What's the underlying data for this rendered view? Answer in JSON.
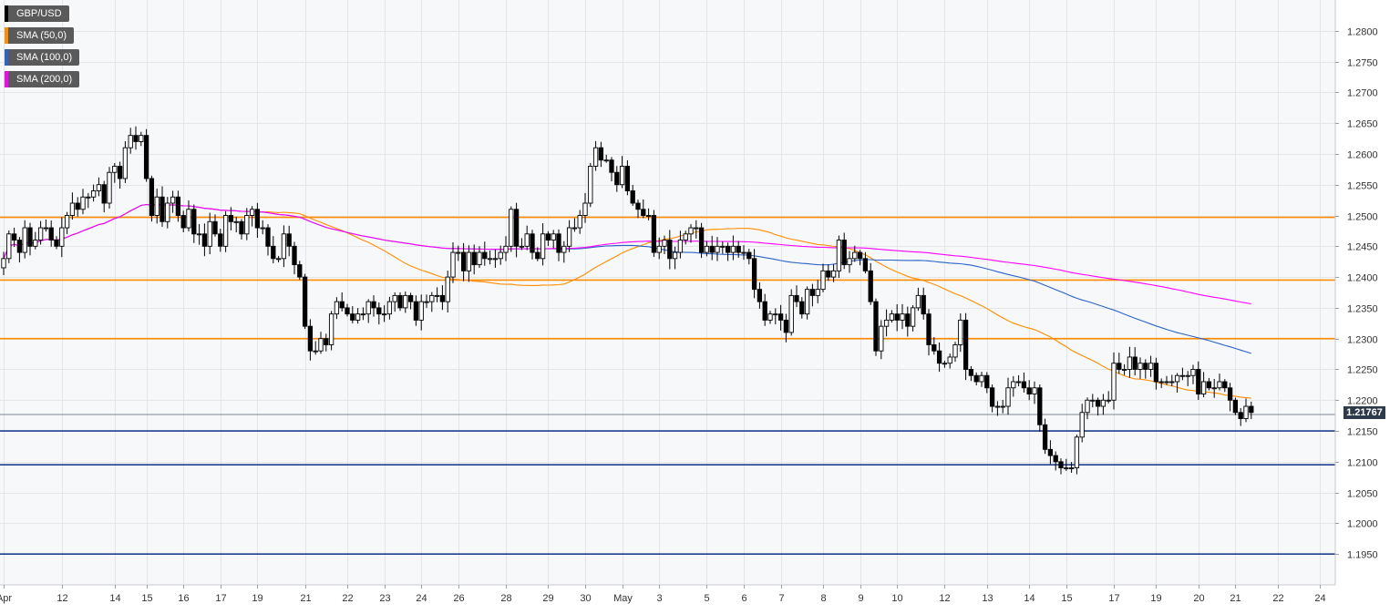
{
  "chart_data": {
    "type": "candlestick",
    "symbol": "GBP/USD",
    "last_price": "1.21767",
    "y_axis": {
      "min": 1.19,
      "max": 1.285,
      "ticks": [
        "1.2800",
        "1.2750",
        "1.2700",
        "1.2650",
        "1.2600",
        "1.2550",
        "1.2500",
        "1.2450",
        "1.2400",
        "1.2350",
        "1.2300",
        "1.2250",
        "1.2200",
        "1.2150",
        "1.2100",
        "1.2050",
        "1.2000",
        "1.1950"
      ]
    },
    "x_axis": {
      "ticks": [
        {
          "label": "Apr",
          "i": 0
        },
        {
          "label": "12",
          "i": 11
        },
        {
          "label": "14",
          "i": 21
        },
        {
          "label": "15",
          "i": 27
        },
        {
          "label": "16",
          "i": 34
        },
        {
          "label": "17",
          "i": 41
        },
        {
          "label": "19",
          "i": 48
        },
        {
          "label": "21",
          "i": 57
        },
        {
          "label": "22",
          "i": 65
        },
        {
          "label": "23",
          "i": 72
        },
        {
          "label": "24",
          "i": 79
        },
        {
          "label": "26",
          "i": 86
        },
        {
          "label": "28",
          "i": 95
        },
        {
          "label": "29",
          "i": 103
        },
        {
          "label": "30",
          "i": 110
        },
        {
          "label": "May",
          "i": 117
        },
        {
          "label": "3",
          "i": 124
        },
        {
          "label": "5",
          "i": 133
        },
        {
          "label": "6",
          "i": 140
        },
        {
          "label": "7",
          "i": 147
        },
        {
          "label": "8",
          "i": 155
        },
        {
          "label": "9",
          "i": 162
        },
        {
          "label": "10",
          "i": 169
        },
        {
          "label": "12",
          "i": 178
        },
        {
          "label": "13",
          "i": 186
        },
        {
          "label": "14",
          "i": 194
        },
        {
          "label": "15",
          "i": 201
        },
        {
          "label": "17",
          "i": 210
        },
        {
          "label": "19",
          "i": 218
        },
        {
          "label": "20",
          "i": 226
        },
        {
          "label": "21",
          "i": 233
        },
        {
          "label": "22",
          "i": 241
        },
        {
          "label": "24",
          "i": 249
        }
      ]
    },
    "horizontal_levels": [
      {
        "value": 1.2497,
        "color": "#ff8c00"
      },
      {
        "value": 1.2395,
        "color": "#ff8c00"
      },
      {
        "value": 1.23,
        "color": "#ff8c00"
      },
      {
        "value": 1.215,
        "color": "#1f3f8f"
      },
      {
        "value": 1.2095,
        "color": "#1f3f8f"
      },
      {
        "value": 1.195,
        "color": "#1f3f8f"
      }
    ],
    "series": [
      {
        "name": "GBP/USD",
        "color": "#000000"
      },
      {
        "name": "SMA (50,0)",
        "color": "#ff8c00"
      },
      {
        "name": "SMA (100,0)",
        "color": "#2a63c9"
      },
      {
        "name": "SMA (200,0)",
        "color": "#ff00ff"
      }
    ],
    "closes": [
      1.243,
      1.247,
      1.246,
      1.244,
      1.248,
      1.245,
      1.246,
      1.248,
      1.248,
      1.246,
      1.245,
      1.248,
      1.25,
      1.252,
      1.251,
      1.253,
      1.253,
      1.254,
      1.255,
      1.252,
      1.257,
      1.258,
      1.256,
      1.261,
      1.263,
      1.262,
      1.263,
      1.256,
      1.25,
      1.253,
      1.249,
      1.252,
      1.253,
      1.25,
      1.248,
      1.251,
      1.247,
      1.247,
      1.245,
      1.249,
      1.247,
      1.245,
      1.25,
      1.249,
      1.249,
      1.247,
      1.25,
      1.251,
      1.248,
      1.248,
      1.245,
      1.243,
      1.243,
      1.247,
      1.245,
      1.242,
      1.24,
      1.232,
      1.228,
      1.228,
      1.23,
      1.229,
      1.234,
      1.236,
      1.235,
      1.234,
      1.233,
      1.234,
      1.234,
      1.236,
      1.235,
      1.234,
      1.234,
      1.236,
      1.237,
      1.235,
      1.237,
      1.236,
      1.233,
      1.236,
      1.236,
      1.237,
      1.237,
      1.236,
      1.24,
      1.244,
      1.244,
      1.241,
      1.244,
      1.242,
      1.244,
      1.243,
      1.243,
      1.243,
      1.244,
      1.245,
      1.251,
      1.245,
      1.245,
      1.247,
      1.244,
      1.243,
      1.247,
      1.246,
      1.247,
      1.244,
      1.245,
      1.248,
      1.248,
      1.25,
      1.252,
      1.258,
      1.261,
      1.259,
      1.259,
      1.257,
      1.255,
      1.258,
      1.254,
      1.252,
      1.251,
      1.25,
      1.25,
      1.244,
      1.245,
      1.246,
      1.243,
      1.244,
      1.246,
      1.247,
      1.248,
      1.248,
      1.244,
      1.245,
      1.244,
      1.245,
      1.245,
      1.244,
      1.245,
      1.244,
      1.244,
      1.243,
      1.238,
      1.236,
      1.233,
      1.234,
      1.234,
      1.233,
      1.231,
      1.237,
      1.236,
      1.234,
      1.238,
      1.237,
      1.238,
      1.241,
      1.24,
      1.241,
      1.246,
      1.242,
      1.243,
      1.244,
      1.243,
      1.241,
      1.236,
      1.228,
      1.232,
      1.233,
      1.234,
      1.233,
      1.234,
      1.232,
      1.235,
      1.237,
      1.234,
      1.229,
      1.228,
      1.226,
      1.226,
      1.227,
      1.229,
      1.233,
      1.225,
      1.224,
      1.223,
      1.224,
      1.222,
      1.219,
      1.219,
      1.219,
      1.222,
      1.223,
      1.223,
      1.222,
      1.221,
      1.222,
      1.216,
      1.212,
      1.211,
      1.21,
      1.209,
      1.209,
      1.209,
      1.214,
      1.218,
      1.22,
      1.22,
      1.219,
      1.22,
      1.22,
      1.226,
      1.225,
      1.225,
      1.227,
      1.225,
      1.226,
      1.225,
      1.226,
      1.223,
      1.223,
      1.223,
      1.223,
      1.224,
      1.224,
      1.224,
      1.225,
      1.221,
      1.223,
      1.222,
      1.222,
      1.223,
      1.222,
      1.22,
      1.218,
      1.217,
      1.219,
      1.218
    ]
  }
}
